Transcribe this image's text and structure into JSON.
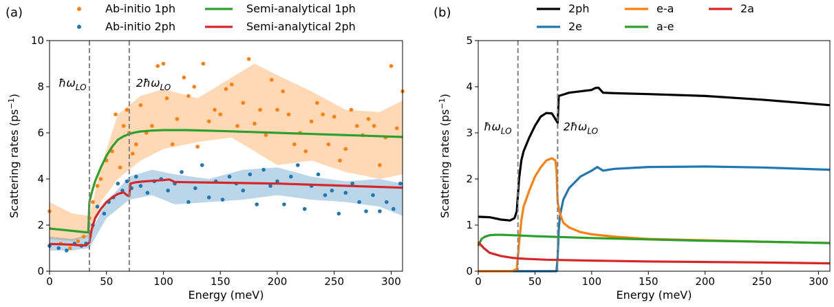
{
  "chart_data": [
    {
      "type": "scatter",
      "panel_label": "(a)",
      "xlabel": "Energy (meV)",
      "ylabel": "Scattering rates (ps",
      "ylabel_sup": "−1",
      "ylabel_end": ")",
      "xlim": [
        0,
        310
      ],
      "ylim": [
        0,
        10
      ],
      "xticks": [
        "0",
        "50",
        "100",
        "150",
        "200",
        "250",
        "300"
      ],
      "yticks": [
        "0",
        "2",
        "4",
        "6",
        "8",
        "10"
      ],
      "legend_position": "top",
      "vlines": [
        35,
        70
      ],
      "annotations": [
        {
          "prefix": "ħω",
          "sub": "LO",
          "x": 8,
          "y": 8.0
        },
        {
          "prefix": "2ħω",
          "sub": "LO",
          "x": 76,
          "y": 8.0
        }
      ],
      "series": [
        {
          "name": "Ab-initio 1ph",
          "kind": "scatter",
          "color": "#ff7f0e",
          "x": [
            0,
            10,
            18,
            25,
            30,
            35,
            38,
            42,
            45,
            50,
            55,
            58,
            62,
            65,
            68,
            70,
            73,
            76,
            80,
            85,
            90,
            95,
            100,
            103,
            108,
            112,
            118,
            122,
            127,
            130,
            135,
            140,
            145,
            150,
            155,
            160,
            165,
            170,
            175,
            180,
            185,
            190,
            195,
            200,
            205,
            210,
            215,
            220,
            225,
            230,
            235,
            240,
            245,
            250,
            255,
            260,
            265,
            270,
            275,
            280,
            285,
            290,
            295,
            300,
            305,
            310
          ],
          "y": [
            2.6,
            1.2,
            1.0,
            1.3,
            1.5,
            2.3,
            3.0,
            3.7,
            4.0,
            4.8,
            5.2,
            6.8,
            4.5,
            6.3,
            7.0,
            6.0,
            5.1,
            5.5,
            7.2,
            6.0,
            6.3,
            8.9,
            9.0,
            7.5,
            5.5,
            6.6,
            8.4,
            7.6,
            8.0,
            5.4,
            9.0,
            6.5,
            7.0,
            6.8,
            7.9,
            8.1,
            6.3,
            7.3,
            9.2,
            6.4,
            7.0,
            5.9,
            8.3,
            7.0,
            7.8,
            6.8,
            5.5,
            6.0,
            5.2,
            6.5,
            7.3,
            6.8,
            5.5,
            6.7,
            4.8,
            5.3,
            7.0,
            6.3,
            5.9,
            6.6,
            6.3,
            4.6,
            5.8,
            8.9,
            6.2,
            7.8
          ]
        },
        {
          "name": "Ab-initio 2ph",
          "kind": "scatter",
          "color": "#1f77b4",
          "x": [
            0,
            8,
            15,
            22,
            28,
            32,
            38,
            42,
            48,
            52,
            56,
            60,
            64,
            68,
            72,
            76,
            80,
            86,
            92,
            98,
            104,
            110,
            116,
            122,
            128,
            134,
            140,
            146,
            152,
            158,
            164,
            170,
            176,
            182,
            188,
            194,
            200,
            206,
            212,
            218,
            224,
            230,
            236,
            242,
            248,
            254,
            260,
            266,
            272,
            278,
            284,
            290,
            296,
            302,
            308
          ],
          "y": [
            1.1,
            1.0,
            0.9,
            1.2,
            1.1,
            1.2,
            2.0,
            2.8,
            2.5,
            3.0,
            3.2,
            3.8,
            3.5,
            3.9,
            3.6,
            4.1,
            3.7,
            3.4,
            3.9,
            4.0,
            3.5,
            3.8,
            4.3,
            3.0,
            3.6,
            4.6,
            3.2,
            3.9,
            3.1,
            4.1,
            3.8,
            3.5,
            4.2,
            2.9,
            4.4,
            3.7,
            3.9,
            2.9,
            4.1,
            4.6,
            2.7,
            3.7,
            4.2,
            3.3,
            3.5,
            2.5,
            3.4,
            3.8,
            3.0,
            2.6,
            3.3,
            2.6,
            3.0,
            2.7,
            3.8
          ]
        },
        {
          "name": "Semi-analytical 1ph",
          "kind": "line",
          "color": "#2ca02c",
          "x": [
            0,
            10,
            20,
            30,
            34,
            35,
            37,
            40,
            45,
            50,
            55,
            60,
            65,
            70,
            75,
            80,
            90,
            100,
            120,
            150,
            200,
            250,
            310
          ],
          "y": [
            1.85,
            1.8,
            1.75,
            1.7,
            1.68,
            3.0,
            3.4,
            3.9,
            4.5,
            5.0,
            5.4,
            5.7,
            5.85,
            5.95,
            6.02,
            6.06,
            6.1,
            6.12,
            6.12,
            6.08,
            6.0,
            5.92,
            5.82
          ]
        },
        {
          "name": "Semi-analytical 2ph",
          "kind": "line",
          "color": "#d62728",
          "x": [
            0,
            10,
            20,
            28,
            32,
            35,
            37,
            40,
            45,
            50,
            55,
            60,
            65,
            68,
            70,
            71,
            75,
            80,
            90,
            100,
            105,
            110,
            120,
            150,
            200,
            250,
            310
          ],
          "y": [
            1.18,
            1.17,
            1.15,
            1.12,
            1.12,
            1.25,
            1.8,
            2.3,
            2.7,
            3.0,
            3.2,
            3.35,
            3.42,
            3.3,
            3.25,
            3.8,
            3.85,
            3.88,
            3.92,
            3.95,
            3.98,
            3.87,
            3.86,
            3.84,
            3.8,
            3.72,
            3.62
          ]
        }
      ],
      "bands": [
        {
          "of": "Ab-initio 1ph",
          "color": "#ff7f0e",
          "x": [
            0,
            20,
            35,
            45,
            60,
            80,
            100,
            130,
            160,
            180,
            200,
            230,
            260,
            290,
            310
          ],
          "lower": [
            1.4,
            1.3,
            1.5,
            3.0,
            4.0,
            4.8,
            5.3,
            5.6,
            5.8,
            5.2,
            4.6,
            4.8,
            4.3,
            4.0,
            4.2
          ],
          "upper": [
            3.0,
            2.5,
            2.4,
            4.5,
            6.8,
            7.6,
            7.9,
            7.5,
            8.4,
            9.0,
            8.5,
            7.8,
            7.0,
            6.9,
            7.4
          ]
        },
        {
          "of": "Ab-initio 2ph",
          "color": "#1f77b4",
          "x": [
            0,
            20,
            35,
            50,
            70,
            90,
            110,
            140,
            170,
            200,
            230,
            260,
            290,
            310
          ],
          "lower": [
            0.9,
            0.9,
            1.0,
            2.3,
            3.1,
            3.3,
            2.9,
            3.0,
            3.1,
            3.3,
            3.1,
            3.0,
            2.8,
            2.4
          ],
          "upper": [
            1.5,
            1.4,
            1.6,
            3.0,
            4.1,
            4.4,
            4.2,
            4.0,
            4.4,
            4.5,
            4.1,
            3.9,
            4.0,
            3.8
          ]
        }
      ]
    },
    {
      "type": "line",
      "panel_label": "(b)",
      "xlabel": "Energy (meV)",
      "ylabel": "Scattering rates (ps",
      "ylabel_sup": "−1",
      "ylabel_end": ")",
      "xlim": [
        0,
        310
      ],
      "ylim": [
        0,
        5
      ],
      "xticks": [
        "0",
        "50",
        "100",
        "150",
        "200",
        "250",
        "300"
      ],
      "yticks": [
        "0",
        "1",
        "2",
        "3",
        "4",
        "5"
      ],
      "legend_position": "top",
      "vlines": [
        35,
        70
      ],
      "annotations": [
        {
          "prefix": "ħω",
          "sub": "LO",
          "x": 5,
          "y": 3.05
        },
        {
          "prefix": "2ħω",
          "sub": "LO",
          "x": 75,
          "y": 3.05
        }
      ],
      "series": [
        {
          "name": "2ph",
          "color": "#000000",
          "x": [
            0,
            10,
            20,
            28,
            32,
            34,
            36,
            38,
            40,
            45,
            50,
            55,
            60,
            65,
            68,
            70,
            71,
            75,
            80,
            90,
            100,
            103,
            106,
            110,
            120,
            150,
            200,
            250,
            310
          ],
          "y": [
            1.18,
            1.17,
            1.12,
            1.1,
            1.15,
            1.3,
            2.0,
            2.4,
            2.6,
            2.9,
            3.15,
            3.35,
            3.43,
            3.42,
            3.3,
            3.22,
            3.8,
            3.83,
            3.87,
            3.9,
            3.93,
            3.97,
            3.98,
            3.87,
            3.86,
            3.84,
            3.8,
            3.72,
            3.6
          ]
        },
        {
          "name": "2e",
          "color": "#1f77b4",
          "x": [
            0,
            69,
            70,
            71,
            72,
            75,
            80,
            90,
            100,
            105,
            110,
            120,
            150,
            200,
            250,
            310
          ],
          "y": [
            0,
            0,
            0.3,
            0.9,
            1.2,
            1.55,
            1.8,
            2.05,
            2.18,
            2.26,
            2.18,
            2.22,
            2.26,
            2.27,
            2.25,
            2.2
          ]
        },
        {
          "name": "e-a",
          "color": "#ff7f0e",
          "x": [
            0,
            30,
            34,
            36,
            38,
            40,
            45,
            50,
            55,
            60,
            65,
            68,
            69,
            70,
            72,
            75,
            80,
            90,
            100,
            120,
            150,
            200,
            250,
            310
          ],
          "y": [
            0,
            0,
            0.05,
            0.6,
            1.1,
            1.4,
            1.75,
            2.05,
            2.25,
            2.4,
            2.45,
            2.4,
            2.2,
            1.5,
            1.25,
            1.05,
            0.95,
            0.85,
            0.8,
            0.75,
            0.7,
            0.67,
            0.64,
            0.61
          ]
        },
        {
          "name": "a-e",
          "color": "#2ca02c",
          "x": [
            0,
            3,
            6,
            10,
            15,
            20,
            30,
            50,
            100,
            150,
            200,
            250,
            310
          ],
          "y": [
            0.55,
            0.7,
            0.75,
            0.78,
            0.79,
            0.79,
            0.78,
            0.76,
            0.72,
            0.69,
            0.66,
            0.64,
            0.61
          ]
        },
        {
          "name": "2a",
          "color": "#d62728",
          "x": [
            0,
            5,
            10,
            20,
            30,
            40,
            60,
            100,
            150,
            200,
            250,
            310
          ],
          "y": [
            0.63,
            0.5,
            0.4,
            0.33,
            0.29,
            0.27,
            0.25,
            0.23,
            0.21,
            0.2,
            0.19,
            0.17
          ]
        }
      ]
    }
  ]
}
